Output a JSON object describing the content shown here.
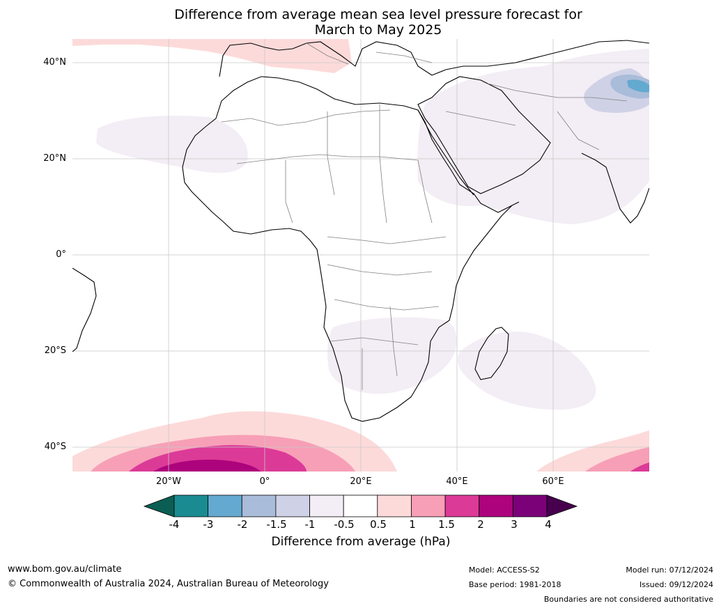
{
  "title_line1": "Difference from average mean sea level pressure forecast for",
  "title_line2": "March to May 2025",
  "lat_labels": [
    "40°N",
    "20°N",
    "0°",
    "20°S",
    "40°S"
  ],
  "lon_labels": [
    "20°W",
    "0°",
    "20°E",
    "40°E",
    "60°E"
  ],
  "colorbar": {
    "ticks": [
      "-4",
      "-3",
      "-2",
      "-1.5",
      "-1",
      "-0.5",
      "0.5",
      "1",
      "1.5",
      "2",
      "3",
      "4"
    ],
    "colors": [
      "#1a8b91",
      "#63a9d0",
      "#a9bcd9",
      "#cfd2e6",
      "#f3edf5",
      "#ffffff",
      "#fddada",
      "#f79fb7",
      "#dc3a97",
      "#ad037c",
      "#7b0178"
    ],
    "extend_low_color": "#0b5e53",
    "extend_high_color": "#47004e",
    "label": "Difference from average (hPa)"
  },
  "footer": {
    "url": "www.bom.gov.au/climate",
    "copyright": "© Commonwealth of Australia 2024, Australian Bureau of Meteorology",
    "model": "Model: ACCESS-S2",
    "base_period": "Base period: 1981-2018",
    "model_run": "Model run: 07/12/2024",
    "issued": "Issued: 09/12/2024",
    "disclaimer": "Boundaries are not considered authoritative"
  }
}
